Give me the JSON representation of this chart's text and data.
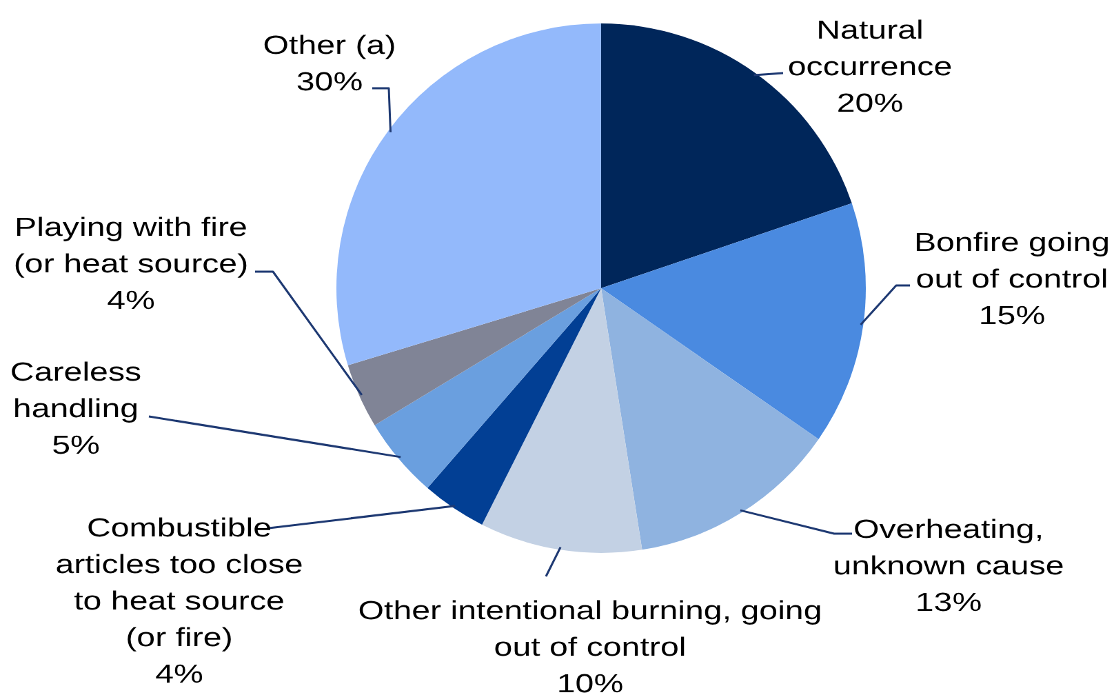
{
  "chart_data": {
    "type": "pie",
    "categories": [
      "Natural occurrence",
      "Bonfire going out of control",
      "Overheating, unknown cause",
      "Other intentional burning, going out of control",
      "Combustible articles too close to heat source (or fire)",
      "Careless handling",
      "Playing with fire (or heat source)",
      "Other (a)"
    ],
    "values": [
      20,
      15,
      13,
      10,
      4,
      5,
      4,
      30
    ],
    "value_labels": [
      "20%",
      "15%",
      "13%",
      "10%",
      "4%",
      "5%",
      "4%",
      "30%"
    ],
    "colors": [
      "#00265a",
      "#4a8ae0",
      "#8fb3e0",
      "#c3d1e4",
      "#023f94",
      "#6a9fdf",
      "#808496",
      "#93b9fb"
    ]
  }
}
